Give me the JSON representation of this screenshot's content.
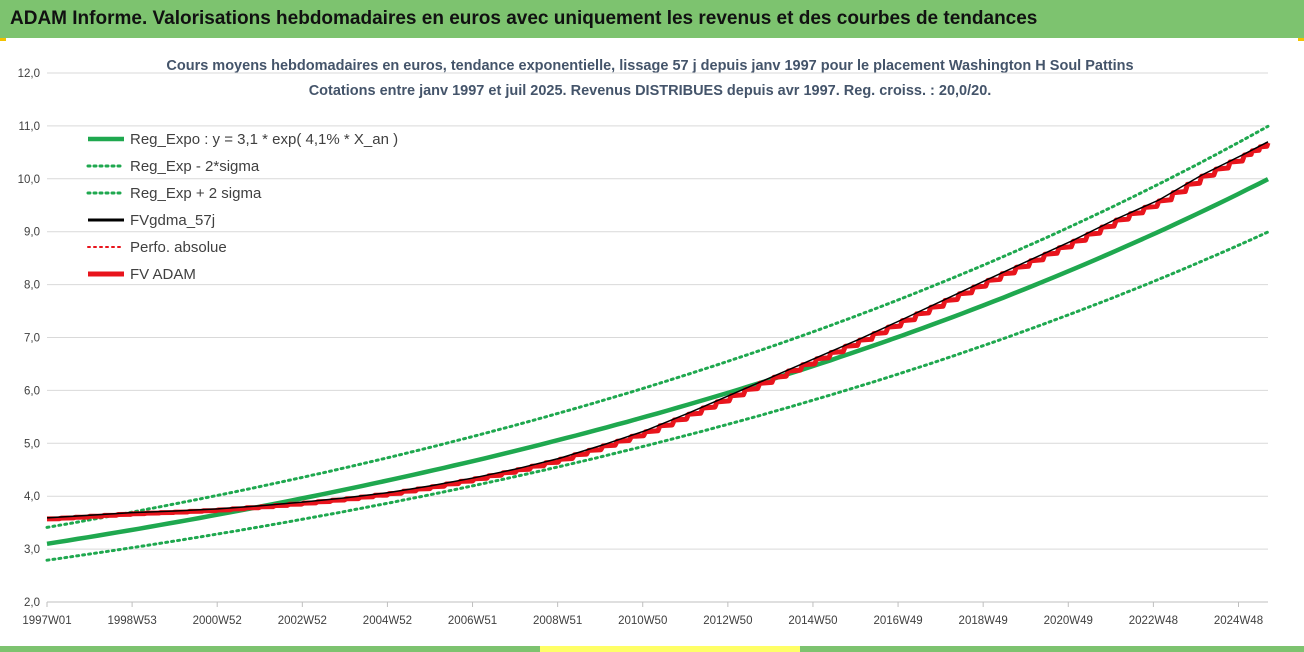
{
  "header": {
    "title": "ADAM Informe. Valorisations hebdomadaires en euros avec uniquement les revenus et des courbes de tendances"
  },
  "colors": {
    "header_bg": "#7dc36f",
    "green": "#1fa84f",
    "red": "#e8141c",
    "black": "#000000",
    "grid": "#d9d9d9"
  },
  "chart_data": {
    "type": "line",
    "title_lines": [
      "Cours moyens hebdomadaires en euros, tendance exponentielle, lissage 57 j depuis janv 1997 pour le placement Washington H Soul Pattins",
      "Cotations entre janv 1997 et juil 2025. Revenus DISTRIBUES depuis avr 1997. Reg. croiss. : 20,0/20."
    ],
    "x_tick_labels": [
      "1997W01",
      "1998W53",
      "2000W52",
      "2002W52",
      "2004W52",
      "2006W51",
      "2008W51",
      "2010W50",
      "2012W50",
      "2014W50",
      "2016W49",
      "2018W49",
      "2020W49",
      "2022W48",
      "2024W48"
    ],
    "x_range": [
      1997.0,
      2025.55
    ],
    "y_tick_labels": [
      "2,0",
      "3,0",
      "4,0",
      "5,0",
      "6,0",
      "7,0",
      "8,0",
      "9,0",
      "10,0",
      "11,0",
      "12,0"
    ],
    "ylim": [
      2.0,
      12.0
    ],
    "grid": "horizontal",
    "legend_position": "top-left",
    "regression": {
      "a": 3.1,
      "growth_rate": 0.041,
      "lower_factor": 0.9,
      "upper_factor": 1.1
    },
    "series": [
      {
        "name": "Reg_Expo : y = 3,1 * exp( 4,1% *  X_an )",
        "color": "#1fa84f",
        "style": "solid"
      },
      {
        "name": "Reg_Exp - 2*sigma",
        "color": "#1fa84f",
        "style": "dotted"
      },
      {
        "name": "Reg_Exp + 2 sigma",
        "color": "#1fa84f",
        "style": "dotted"
      },
      {
        "name": "FVgdma_57j",
        "color": "#000000",
        "style": "solid"
      },
      {
        "name": "Perfo. absolue",
        "color": "#e8141c",
        "style": "dotted"
      },
      {
        "name": "FV ADAM",
        "color": "#e8141c",
        "style": "solid",
        "points": [
          {
            "x": 1997.0,
            "y": 3.57
          },
          {
            "x": 1998.0,
            "y": 3.62
          },
          {
            "x": 1999.0,
            "y": 3.67
          },
          {
            "x": 2000.0,
            "y": 3.7
          },
          {
            "x": 2001.0,
            "y": 3.74
          },
          {
            "x": 2002.0,
            "y": 3.8
          },
          {
            "x": 2003.0,
            "y": 3.87
          },
          {
            "x": 2004.0,
            "y": 3.95
          },
          {
            "x": 2005.0,
            "y": 4.05
          },
          {
            "x": 2006.0,
            "y": 4.18
          },
          {
            "x": 2007.0,
            "y": 4.33
          },
          {
            "x": 2008.0,
            "y": 4.5
          },
          {
            "x": 2009.0,
            "y": 4.7
          },
          {
            "x": 2010.0,
            "y": 4.95
          },
          {
            "x": 2011.0,
            "y": 5.22
          },
          {
            "x": 2012.0,
            "y": 5.55
          },
          {
            "x": 2013.0,
            "y": 5.9
          },
          {
            "x": 2014.0,
            "y": 6.25
          },
          {
            "x": 2015.0,
            "y": 6.6
          },
          {
            "x": 2016.0,
            "y": 6.95
          },
          {
            "x": 2017.0,
            "y": 7.32
          },
          {
            "x": 2018.0,
            "y": 7.7
          },
          {
            "x": 2019.0,
            "y": 8.08
          },
          {
            "x": 2020.0,
            "y": 8.45
          },
          {
            "x": 2021.0,
            "y": 8.82
          },
          {
            "x": 2022.0,
            "y": 9.22
          },
          {
            "x": 2023.0,
            "y": 9.58
          },
          {
            "x": 2024.0,
            "y": 10.05
          },
          {
            "x": 2025.0,
            "y": 10.45
          },
          {
            "x": 2025.55,
            "y": 10.68
          }
        ]
      }
    ]
  }
}
